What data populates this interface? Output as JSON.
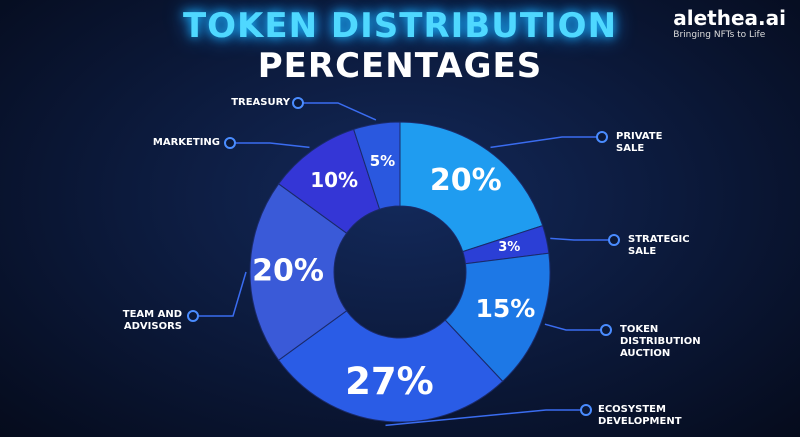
{
  "brand": {
    "name": "alethea.ai",
    "tagline": "Bringing NFTs to Life"
  },
  "chart_data": {
    "type": "donut",
    "title": "TOKEN DISTRIBUTION",
    "subtitle": "PERCENTAGES",
    "categories": [
      "PRIVATE SALE",
      "STRATEGIC SALE",
      "TOKEN DISTRIBUTION AUCTION",
      "ECOSYSTEM DEVELOPMENT",
      "TEAM AND ADVISORS",
      "MARKETING",
      "TREASURY"
    ],
    "values": [
      20,
      3,
      15,
      27,
      20,
      10,
      5
    ],
    "value_labels": [
      "20%",
      "3%",
      "15%",
      "27%",
      "20%",
      "10%",
      "5%"
    ],
    "colors": [
      "#1f9cf0",
      "#2b3fd6",
      "#1d78e6",
      "#2a5ce6",
      "#3a5ad8",
      "#3436d6",
      "#2a58df"
    ]
  }
}
